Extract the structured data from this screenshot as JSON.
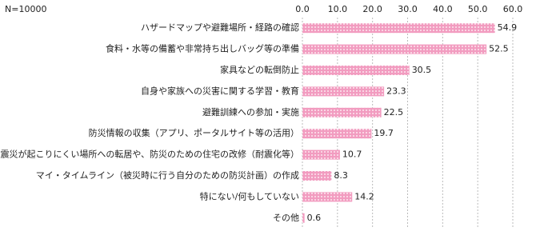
{
  "chart_data": {
    "type": "bar",
    "orientation": "horizontal",
    "annotation": "N=10000",
    "categories": [
      "ハザードマップや避難場所・経路の確認",
      "食料・水等の備蓄や非常持ち出しバッグ等の準備",
      "家具などの転倒防止",
      "自身や家族への災害に関する学習・教育",
      "避難訓練への参加・実施",
      "防災情報の収集（アプリ、ポータルサイト等の活用）",
      "震災が起こりにくい場所への転居や、防災のための住宅の改修（耐震化等）",
      "マイ・タイムライン（被災時に行う自分のための防災計画）の作成",
      "特にない/何もしていない",
      "その他"
    ],
    "values": [
      54.9,
      52.5,
      30.5,
      23.3,
      22.5,
      19.7,
      10.7,
      8.3,
      14.2,
      0.6
    ],
    "color": "#f29cc0",
    "xlim": [
      0,
      60
    ],
    "xticks": [
      {
        "value": 0,
        "label": "0.0"
      },
      {
        "value": 10,
        "label": "10.0"
      },
      {
        "value": 20,
        "label": "20.0"
      },
      {
        "value": 30,
        "label": "30.0"
      },
      {
        "value": 40,
        "label": "40.0"
      },
      {
        "value": 50,
        "label": "50.0"
      },
      {
        "value": 60,
        "label": "60.0"
      }
    ],
    "grid": true
  }
}
